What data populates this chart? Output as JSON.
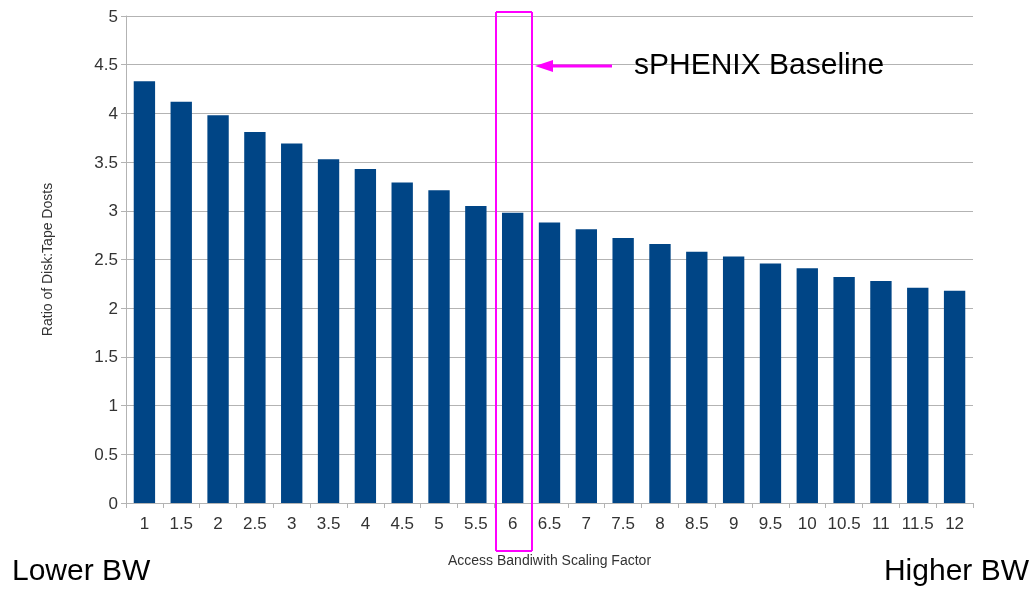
{
  "chart_data": {
    "type": "bar",
    "xlabel": "Access Bandiwith Scaling Factor",
    "ylabel": "Ratio of Disk:Tape Dosts",
    "categories": [
      "1",
      "1.5",
      "2",
      "2.5",
      "3",
      "3.5",
      "4",
      "4.5",
      "5",
      "5.5",
      "6",
      "6.5",
      "7",
      "7.5",
      "8",
      "8.5",
      "9",
      "9.5",
      "10",
      "10.5",
      "11",
      "11.5",
      "12"
    ],
    "values": [
      4.33,
      4.12,
      3.98,
      3.81,
      3.69,
      3.53,
      3.43,
      3.29,
      3.21,
      3.05,
      2.98,
      2.88,
      2.81,
      2.72,
      2.66,
      2.58,
      2.53,
      2.46,
      2.41,
      2.32,
      2.28,
      2.21,
      2.18
    ],
    "color": "#004586",
    "ylim": [
      0,
      5
    ],
    "yticks": [
      0,
      0.5,
      1,
      1.5,
      2,
      2.5,
      3,
      3.5,
      4,
      4.5,
      5
    ],
    "grid": "y",
    "annotations": [
      "sPHENIX Baseline",
      "Lower BW",
      "Higher BW"
    ]
  }
}
